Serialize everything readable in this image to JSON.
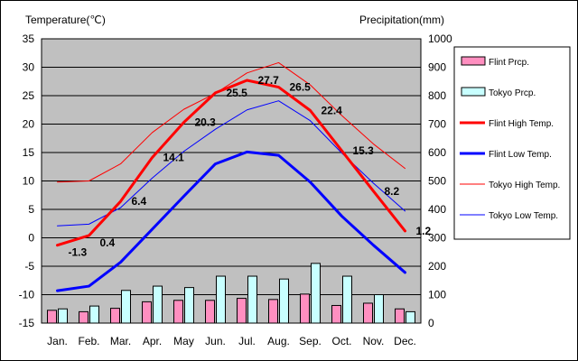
{
  "chart_data": {
    "type": "bar",
    "title": "",
    "ylabel_left": "Temperature(℃)",
    "ylabel_right": "Precipitation(mm)",
    "categories": [
      "Jan.",
      "Feb.",
      "Mar.",
      "Apr.",
      "May",
      "Jun.",
      "Jul.",
      "Aug.",
      "Sep.",
      "Oct.",
      "Nov.",
      "Dec."
    ],
    "ylim_left": [
      -15,
      35
    ],
    "yticks_left": [
      "35",
      "30",
      "25",
      "20",
      "15",
      "10",
      "5",
      "0",
      "-5",
      "-10",
      "-15"
    ],
    "ylim_right": [
      0,
      1000
    ],
    "yticks_right": [
      "1000",
      "900",
      "800",
      "700",
      "600",
      "500",
      "400",
      "300",
      "200",
      "100",
      "0"
    ],
    "grid": true,
    "legend_position": "right",
    "bar_series": [
      {
        "name": "Flint Prcp.",
        "color": "#ff8fc0",
        "values": [
          45,
          40,
          52,
          75,
          80,
          80,
          87,
          83,
          102,
          62,
          70,
          50
        ]
      },
      {
        "name": "Tokyo Prcp.",
        "color": "#c8ffff",
        "values": [
          50,
          60,
          115,
          130,
          125,
          165,
          165,
          155,
          210,
          165,
          100,
          40
        ]
      }
    ],
    "line_series": [
      {
        "name": "Flint High Temp.",
        "color": "#ff0000",
        "width": 3,
        "values": [
          -1.3,
          0.4,
          6.4,
          14.1,
          20.3,
          25.5,
          27.7,
          26.5,
          22.4,
          15.3,
          8.2,
          1.2
        ]
      },
      {
        "name": "Flint Low Temp.",
        "color": "#0000ff",
        "width": 3,
        "values": [
          -9.3,
          -8.5,
          -4.3,
          1.5,
          7.3,
          13.0,
          15.1,
          14.5,
          9.8,
          3.8,
          -1.3,
          -6.1
        ]
      },
      {
        "name": "Tokyo High Temp.",
        "color": "#ff0000",
        "width": 1,
        "values": [
          9.8,
          10.0,
          13.0,
          18.5,
          22.6,
          25.4,
          29.0,
          30.8,
          26.9,
          21.5,
          16.5,
          12.2
        ]
      },
      {
        "name": "Tokyo Low Temp.",
        "color": "#0000ff",
        "width": 1,
        "values": [
          2.1,
          2.4,
          5.3,
          10.5,
          15.2,
          19.1,
          22.5,
          24.1,
          20.6,
          14.9,
          9.6,
          4.7
        ]
      }
    ],
    "data_labels": [
      "-1.3",
      "0.4",
      "6.4",
      "14.1",
      "20.3",
      "25.5",
      "27.7",
      "26.5",
      "22.4",
      "15.3",
      "8.2",
      "1.2"
    ]
  }
}
